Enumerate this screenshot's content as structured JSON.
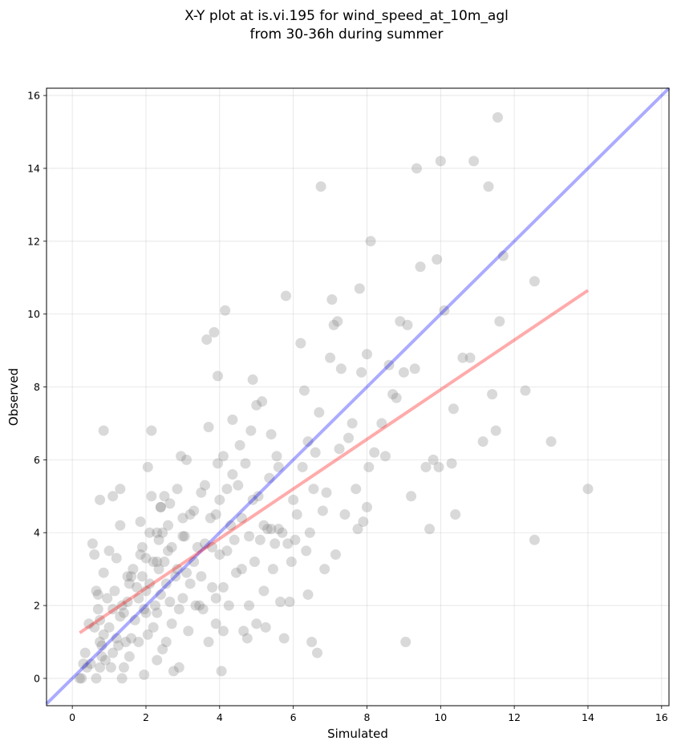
{
  "chart_data": {
    "type": "scatter",
    "title_line1": "X-Y plot at is.vi.195 for wind_speed_at_10m_agl",
    "title_line2": "from 30-36h during summer",
    "xlabel": "Simulated",
    "ylabel": "Observed",
    "xlim": [
      -0.7,
      16.2
    ],
    "ylim": [
      -0.75,
      16.2
    ],
    "xticks": [
      0,
      2,
      4,
      6,
      8,
      10,
      12,
      14,
      16
    ],
    "yticks": [
      0,
      2,
      4,
      6,
      8,
      10,
      12,
      14,
      16
    ],
    "grid": true,
    "colors": {
      "points": "#808080",
      "one_to_one": "#0000ff",
      "fit": "#ff0000"
    },
    "one_to_one": {
      "x": [
        -0.7,
        16.2
      ],
      "y": [
        -0.7,
        16.2
      ]
    },
    "fit_line": {
      "x": [
        0.2,
        14.0
      ],
      "y": [
        1.25,
        10.65
      ]
    },
    "points": [
      [
        0.2,
        0.0
      ],
      [
        0.25,
        0.0
      ],
      [
        0.3,
        0.4
      ],
      [
        0.35,
        0.7
      ],
      [
        0.4,
        0.3
      ],
      [
        0.45,
        1.5
      ],
      [
        0.5,
        0.4
      ],
      [
        0.6,
        1.4
      ],
      [
        0.55,
        3.7
      ],
      [
        0.6,
        3.4
      ],
      [
        0.65,
        2.4
      ],
      [
        0.7,
        2.3
      ],
      [
        0.7,
        1.9
      ],
      [
        0.75,
        1.6
      ],
      [
        0.75,
        1.0
      ],
      [
        0.8,
        0.6
      ],
      [
        0.65,
        0.0
      ],
      [
        0.75,
        0.3
      ],
      [
        0.8,
        0.9
      ],
      [
        0.85,
        1.2
      ],
      [
        0.85,
        2.9
      ],
      [
        0.75,
        4.9
      ],
      [
        0.85,
        6.8
      ],
      [
        0.9,
        0.5
      ],
      [
        0.95,
        2.2
      ],
      [
        1.0,
        1.4
      ],
      [
        1.0,
        3.5
      ],
      [
        1.05,
        0.3
      ],
      [
        1.1,
        0.7
      ],
      [
        1.1,
        1.9
      ],
      [
        1.1,
        5.0
      ],
      [
        1.15,
        2.4
      ],
      [
        1.2,
        1.1
      ],
      [
        1.2,
        3.3
      ],
      [
        1.25,
        0.9
      ],
      [
        1.3,
        4.2
      ],
      [
        1.3,
        5.2
      ],
      [
        1.3,
        1.7
      ],
      [
        1.35,
        2.0
      ],
      [
        1.35,
        0.0
      ],
      [
        1.4,
        0.3
      ],
      [
        1.4,
        1.8
      ],
      [
        1.45,
        1.0
      ],
      [
        1.5,
        2.8
      ],
      [
        1.5,
        2.1
      ],
      [
        1.55,
        0.6
      ],
      [
        1.55,
        2.6
      ],
      [
        1.6,
        2.8
      ],
      [
        1.6,
        1.1
      ],
      [
        1.65,
        3.0
      ],
      [
        1.7,
        1.6
      ],
      [
        1.75,
        2.5
      ],
      [
        1.8,
        2.2
      ],
      [
        1.8,
        1.0
      ],
      [
        1.85,
        3.4
      ],
      [
        1.85,
        4.3
      ],
      [
        1.9,
        3.6
      ],
      [
        1.9,
        2.8
      ],
      [
        1.95,
        1.9
      ],
      [
        1.95,
        0.1
      ],
      [
        2.0,
        2.4
      ],
      [
        2.0,
        1.8
      ],
      [
        2.0,
        3.3
      ],
      [
        2.05,
        5.8
      ],
      [
        2.05,
        1.2
      ],
      [
        2.1,
        2.6
      ],
      [
        2.1,
        4.0
      ],
      [
        2.15,
        5.0
      ],
      [
        2.15,
        6.8
      ],
      [
        2.2,
        1.4
      ],
      [
        2.2,
        3.2
      ],
      [
        2.25,
        2.0
      ],
      [
        2.3,
        4.0
      ],
      [
        2.3,
        0.5
      ],
      [
        2.3,
        1.8
      ],
      [
        2.35,
        3.0
      ],
      [
        2.35,
        3.8
      ],
      [
        2.4,
        4.7
      ],
      [
        2.4,
        2.3
      ],
      [
        2.45,
        0.8
      ],
      [
        2.45,
        4.0
      ],
      [
        2.5,
        3.2
      ],
      [
        2.5,
        5.0
      ],
      [
        2.55,
        2.6
      ],
      [
        2.55,
        1.0
      ],
      [
        2.6,
        4.2
      ],
      [
        2.6,
        3.5
      ],
      [
        2.65,
        4.8
      ],
      [
        2.65,
        2.1
      ],
      [
        2.7,
        1.5
      ],
      [
        2.7,
        3.6
      ],
      [
        2.75,
        0.2
      ],
      [
        2.8,
        2.8
      ],
      [
        2.85,
        5.2
      ],
      [
        2.85,
        3.0
      ],
      [
        2.9,
        1.9
      ],
      [
        2.9,
        0.3
      ],
      [
        2.95,
        6.1
      ],
      [
        3.0,
        2.2
      ],
      [
        3.0,
        4.4
      ],
      [
        3.05,
        3.9
      ],
      [
        3.1,
        2.9
      ],
      [
        3.1,
        6.0
      ],
      [
        3.15,
        1.3
      ],
      [
        3.2,
        2.6
      ],
      [
        3.2,
        4.5
      ],
      [
        3.3,
        4.6
      ],
      [
        3.3,
        3.2
      ],
      [
        3.35,
        2.0
      ],
      [
        3.4,
        3.6
      ],
      [
        3.45,
        2.0
      ],
      [
        3.5,
        2.8
      ],
      [
        3.5,
        5.1
      ],
      [
        3.55,
        1.9
      ],
      [
        3.6,
        5.3
      ],
      [
        3.6,
        3.7
      ],
      [
        3.65,
        9.3
      ],
      [
        3.7,
        1.0
      ],
      [
        3.7,
        6.9
      ],
      [
        3.75,
        4.4
      ],
      [
        3.8,
        2.5
      ],
      [
        3.8,
        3.6
      ],
      [
        3.85,
        9.5
      ],
      [
        3.9,
        2.2
      ],
      [
        3.9,
        4.5
      ],
      [
        3.9,
        1.5
      ],
      [
        3.95,
        8.3
      ],
      [
        3.95,
        5.9
      ],
      [
        4.0,
        3.4
      ],
      [
        4.0,
        4.9
      ],
      [
        4.05,
        0.2
      ],
      [
        4.1,
        1.3
      ],
      [
        4.1,
        2.5
      ],
      [
        4.1,
        6.1
      ],
      [
        4.15,
        10.1
      ],
      [
        4.2,
        5.2
      ],
      [
        4.2,
        3.5
      ],
      [
        4.25,
        2.0
      ],
      [
        4.3,
        4.2
      ],
      [
        4.35,
        5.6
      ],
      [
        4.35,
        7.1
      ],
      [
        4.4,
        3.8
      ],
      [
        4.45,
        2.9
      ],
      [
        4.5,
        5.3
      ],
      [
        4.55,
        6.4
      ],
      [
        4.6,
        4.4
      ],
      [
        4.6,
        3.0
      ],
      [
        4.65,
        1.3
      ],
      [
        4.7,
        5.9
      ],
      [
        4.75,
        1.1
      ],
      [
        4.8,
        2.0
      ],
      [
        4.8,
        3.9
      ],
      [
        4.85,
        6.8
      ],
      [
        4.9,
        8.2
      ],
      [
        4.9,
        4.9
      ],
      [
        4.95,
        3.2
      ],
      [
        5.0,
        7.5
      ],
      [
        5.0,
        1.5
      ],
      [
        5.05,
        5.0
      ],
      [
        5.1,
        3.8
      ],
      [
        5.15,
        7.6
      ],
      [
        5.2,
        4.2
      ],
      [
        5.2,
        2.4
      ],
      [
        5.25,
        1.4
      ],
      [
        5.3,
        4.1
      ],
      [
        5.35,
        5.5
      ],
      [
        5.4,
        6.7
      ],
      [
        5.45,
        3.0
      ],
      [
        5.5,
        3.7
      ],
      [
        5.55,
        6.1
      ],
      [
        5.6,
        5.8
      ],
      [
        5.65,
        2.1
      ],
      [
        5.7,
        4.0
      ],
      [
        5.75,
        1.1
      ],
      [
        5.8,
        10.5
      ],
      [
        5.85,
        3.7
      ],
      [
        5.9,
        2.1
      ],
      [
        5.95,
        3.2
      ],
      [
        6.0,
        4.9
      ],
      [
        6.05,
        3.8
      ],
      [
        6.1,
        4.5
      ],
      [
        6.2,
        9.2
      ],
      [
        6.25,
        5.8
      ],
      [
        6.3,
        7.9
      ],
      [
        6.35,
        3.5
      ],
      [
        6.4,
        2.3
      ],
      [
        6.45,
        4.0
      ],
      [
        6.5,
        1.0
      ],
      [
        6.55,
        5.2
      ],
      [
        6.6,
        6.2
      ],
      [
        6.65,
        0.7
      ],
      [
        6.7,
        7.3
      ],
      [
        6.75,
        13.5
      ],
      [
        6.8,
        4.6
      ],
      [
        6.85,
        3.0
      ],
      [
        6.9,
        5.1
      ],
      [
        7.0,
        8.8
      ],
      [
        7.05,
        10.4
      ],
      [
        7.1,
        9.7
      ],
      [
        7.15,
        3.4
      ],
      [
        7.2,
        9.8
      ],
      [
        7.25,
        6.3
      ],
      [
        7.3,
        8.5
      ],
      [
        7.4,
        4.5
      ],
      [
        7.5,
        6.6
      ],
      [
        7.6,
        7.0
      ],
      [
        7.7,
        5.2
      ],
      [
        7.75,
        4.1
      ],
      [
        7.8,
        10.7
      ],
      [
        7.85,
        8.4
      ],
      [
        7.9,
        4.3
      ],
      [
        8.0,
        8.9
      ],
      [
        8.0,
        4.7
      ],
      [
        8.05,
        5.8
      ],
      [
        8.1,
        12.0
      ],
      [
        8.2,
        6.2
      ],
      [
        8.4,
        7.0
      ],
      [
        8.5,
        6.1
      ],
      [
        8.6,
        8.6
      ],
      [
        8.7,
        7.8
      ],
      [
        8.8,
        7.7
      ],
      [
        8.9,
        9.8
      ],
      [
        9.0,
        8.4
      ],
      [
        9.05,
        1.0
      ],
      [
        9.1,
        9.7
      ],
      [
        9.2,
        5.0
      ],
      [
        9.3,
        8.5
      ],
      [
        9.35,
        14.0
      ],
      [
        9.45,
        11.3
      ],
      [
        9.6,
        5.8
      ],
      [
        9.7,
        4.1
      ],
      [
        9.8,
        6.0
      ],
      [
        9.9,
        11.5
      ],
      [
        9.95,
        5.8
      ],
      [
        10.0,
        14.2
      ],
      [
        10.1,
        10.1
      ],
      [
        10.3,
        5.9
      ],
      [
        10.35,
        7.4
      ],
      [
        10.4,
        4.5
      ],
      [
        10.6,
        8.8
      ],
      [
        10.8,
        8.8
      ],
      [
        10.9,
        14.2
      ],
      [
        11.15,
        6.5
      ],
      [
        11.3,
        13.5
      ],
      [
        11.4,
        7.8
      ],
      [
        11.5,
        6.8
      ],
      [
        11.55,
        15.4
      ],
      [
        11.6,
        9.8
      ],
      [
        11.7,
        11.6
      ],
      [
        12.3,
        7.9
      ],
      [
        12.55,
        10.9
      ],
      [
        12.55,
        3.8
      ],
      [
        13.0,
        6.5
      ],
      [
        14.0,
        5.2
      ],
      [
        2.4,
        4.7
      ],
      [
        5.4,
        4.1
      ],
      [
        3.0,
        3.9
      ],
      [
        2.3,
        3.2
      ],
      [
        5.6,
        4.1
      ],
      [
        6.4,
        6.5
      ]
    ]
  }
}
